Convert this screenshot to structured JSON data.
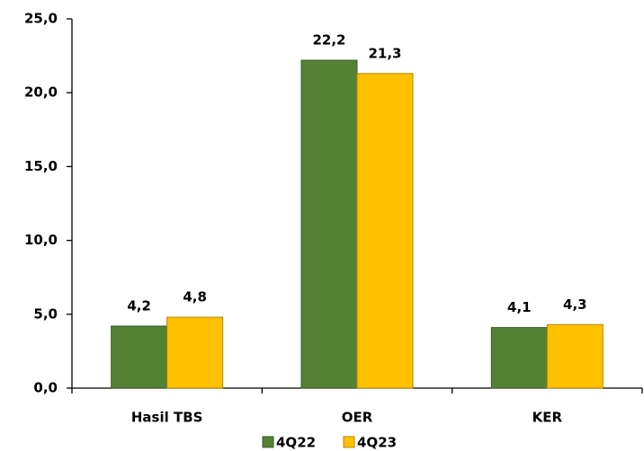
{
  "chart_data": {
    "type": "bar",
    "categories": [
      "Hasil TBS",
      "OER",
      "KER"
    ],
    "series": [
      {
        "name": "4Q22",
        "color": "#548235",
        "values": [
          4.2,
          22.2,
          4.1
        ],
        "value_labels": [
          "4,2",
          "22,2",
          "4,1"
        ]
      },
      {
        "name": "4Q23",
        "color": "#ffc000",
        "values": [
          4.8,
          21.3,
          4.3
        ],
        "value_labels": [
          "4,8",
          "21,3",
          "4,3"
        ]
      }
    ],
    "ylim": [
      0,
      25
    ],
    "yticks": [
      {
        "value": 0,
        "label": "0,0"
      },
      {
        "value": 5,
        "label": "5,0"
      },
      {
        "value": 10,
        "label": "10,0"
      },
      {
        "value": 15,
        "label": "15,0"
      },
      {
        "value": 20,
        "label": "20,0"
      },
      {
        "value": 25,
        "label": "25,0"
      }
    ],
    "grid": false,
    "legend": "bottom"
  }
}
